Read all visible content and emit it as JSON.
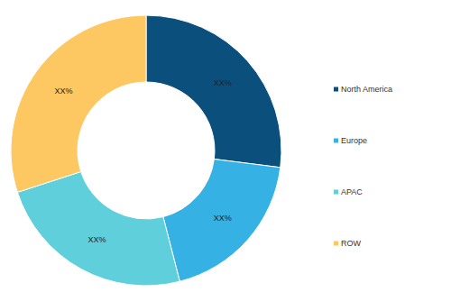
{
  "chart_data": {
    "type": "donut",
    "categories": [
      "North America",
      "Europe",
      "APAC",
      "ROW"
    ],
    "values": [
      27,
      19,
      24,
      30
    ],
    "value_labels": [
      "XX%",
      "XX%",
      "XX%",
      "XX%"
    ],
    "colors": [
      "#0b4f7c",
      "#35b1e4",
      "#5fcfdc",
      "#fdc861"
    ],
    "data_labels": true,
    "legend": "right"
  }
}
